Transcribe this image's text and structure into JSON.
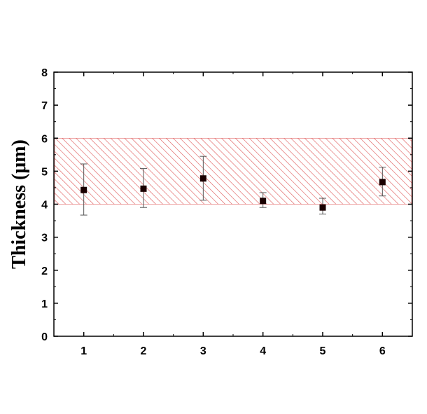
{
  "chart_data": {
    "type": "scatter",
    "title": "",
    "xlabel": "",
    "ylabel": "Thickness (μm)",
    "xlim": [
      0.5,
      6.5
    ],
    "ylim": [
      0,
      8
    ],
    "x_ticks": [
      1,
      2,
      3,
      4,
      5,
      6
    ],
    "y_ticks": [
      0,
      1,
      2,
      3,
      4,
      5,
      6,
      7,
      8
    ],
    "grid": false,
    "legend": "none",
    "band": {
      "y_min": 4.0,
      "y_max": 6.0,
      "color": "#e06060",
      "pattern": "diagonal-hatch"
    },
    "series": [
      {
        "marker": "square",
        "color": "#1a0000",
        "points": [
          {
            "x": 1,
            "y": 4.43,
            "err_low": 3.67,
            "err_high": 5.22
          },
          {
            "x": 2,
            "y": 4.47,
            "err_low": 3.9,
            "err_high": 5.08
          },
          {
            "x": 3,
            "y": 4.78,
            "err_low": 4.12,
            "err_high": 5.45
          },
          {
            "x": 4,
            "y": 4.1,
            "err_low": 3.9,
            "err_high": 4.35
          },
          {
            "x": 5,
            "y": 3.9,
            "err_low": 3.7,
            "err_high": 4.18
          },
          {
            "x": 6,
            "y": 4.67,
            "err_low": 4.25,
            "err_high": 5.12
          }
        ]
      }
    ]
  }
}
